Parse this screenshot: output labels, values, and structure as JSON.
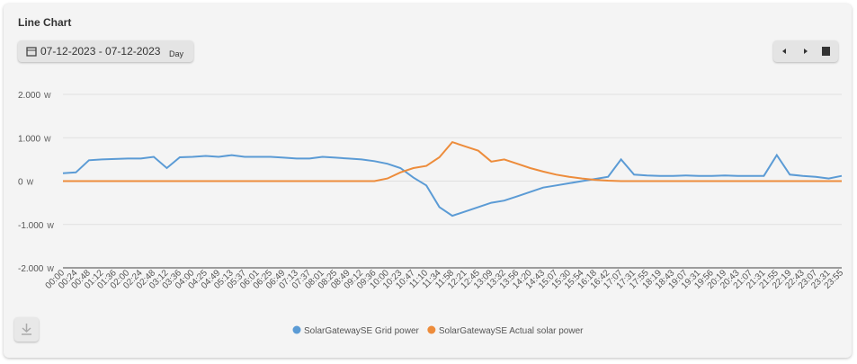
{
  "header": {
    "title": "Line Chart",
    "date_range": "07-12-2023 - 07-12-2023",
    "period": "Day"
  },
  "chart_data": {
    "type": "line",
    "y_unit": "W",
    "categories": [
      "00:00",
      "00:24",
      "00:48",
      "01:12",
      "01:36",
      "02:00",
      "02:24",
      "02:48",
      "03:12",
      "03:36",
      "04:00",
      "04:25",
      "04:49",
      "05:13",
      "05:37",
      "06:01",
      "06:25",
      "06:49",
      "07:13",
      "07:37",
      "08:01",
      "08:25",
      "08:49",
      "09:12",
      "09:36",
      "10:00",
      "10:23",
      "10:47",
      "11:10",
      "11:34",
      "11:58",
      "12:21",
      "12:45",
      "13:09",
      "13:32",
      "13:56",
      "14:20",
      "14:43",
      "15:07",
      "15:30",
      "15:54",
      "16:18",
      "16:42",
      "17:07",
      "17:31",
      "17:55",
      "18:19",
      "18:43",
      "19:07",
      "19:31",
      "19:56",
      "20:19",
      "20:43",
      "21:07",
      "21:31",
      "21:55",
      "22:19",
      "22:43",
      "23:07",
      "23:31",
      "23:55"
    ],
    "series": [
      {
        "name": "SolarGatewaySE Grid power",
        "color": "#5b9bd5",
        "values": [
          180,
          200,
          480,
          500,
          510,
          520,
          520,
          560,
          300,
          550,
          560,
          580,
          560,
          600,
          560,
          560,
          560,
          540,
          520,
          520,
          560,
          540,
          520,
          500,
          460,
          400,
          300,
          80,
          -100,
          -600,
          -800,
          -700,
          -600,
          -500,
          -450,
          -350,
          -250,
          -150,
          -100,
          -50,
          0,
          50,
          100,
          500,
          150,
          130,
          120,
          120,
          130,
          120,
          120,
          130,
          120,
          120,
          120,
          600,
          150,
          120,
          100,
          60,
          120
        ]
      },
      {
        "name": "SolarGatewaySE Actual solar power",
        "color": "#ed8c3b",
        "values": [
          0,
          0,
          0,
          0,
          0,
          0,
          0,
          0,
          0,
          0,
          0,
          0,
          0,
          0,
          0,
          0,
          0,
          0,
          0,
          0,
          0,
          0,
          0,
          0,
          0,
          60,
          200,
          300,
          350,
          550,
          900,
          800,
          700,
          450,
          500,
          400,
          300,
          220,
          150,
          100,
          60,
          30,
          10,
          0,
          0,
          0,
          0,
          0,
          0,
          0,
          0,
          0,
          0,
          0,
          0,
          0,
          0,
          0,
          0,
          0,
          0
        ]
      }
    ],
    "ylim": [
      -2000,
      2000
    ],
    "yticks": [
      {
        "value": 2000,
        "label": "2.000"
      },
      {
        "value": 1000,
        "label": "1.000"
      },
      0,
      {
        "value": -1000,
        "label": "-1.000"
      },
      {
        "value": -2000,
        "label": "-2.000"
      }
    ],
    "grid": true
  }
}
